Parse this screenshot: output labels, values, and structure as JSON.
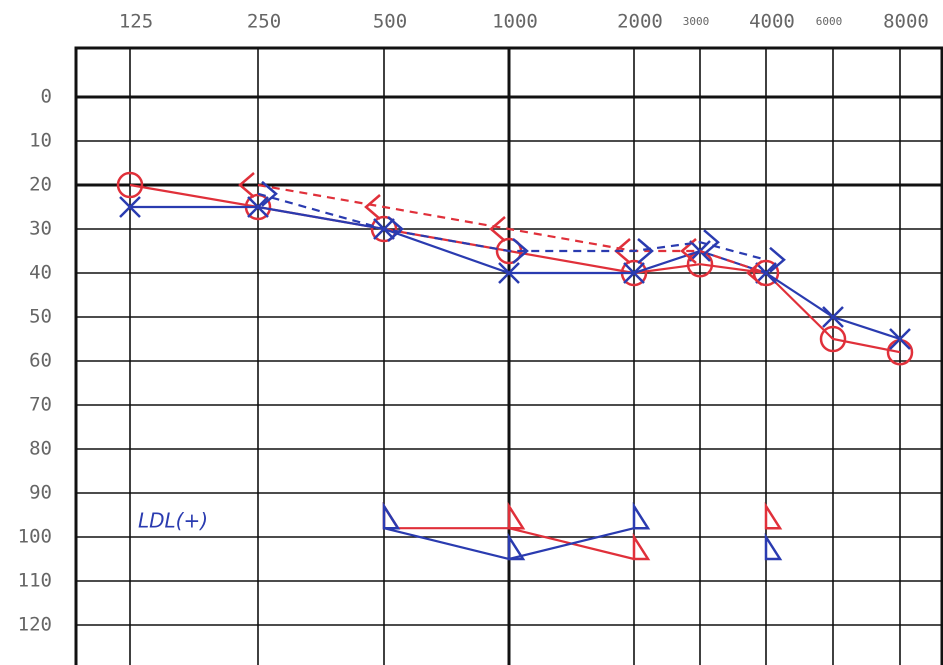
{
  "chart_data": {
    "type": "line",
    "categories": [
      "125",
      "250",
      "500",
      "1000",
      "2000",
      "3000",
      "4000",
      "6000",
      "8000"
    ],
    "ylim": [
      -10,
      130
    ],
    "yticks": [
      0,
      10,
      20,
      30,
      40,
      50,
      60,
      70,
      80,
      90,
      100,
      110,
      120
    ],
    "grid": true,
    "annotation": "LDL(+)",
    "series": [
      {
        "color": "#e0303a",
        "marker": "circle",
        "dash": false,
        "values": [
          20,
          25,
          30,
          35,
          40,
          38,
          40,
          55,
          58
        ]
      },
      {
        "color": "#2a3bb0",
        "marker": "x",
        "dash": false,
        "values": [
          25,
          25,
          30,
          40,
          40,
          35,
          40,
          50,
          55
        ]
      },
      {
        "color": "#e0303a",
        "marker": "left",
        "dash": true,
        "values": [
          null,
          20,
          25,
          30,
          35,
          35,
          40,
          null,
          null
        ]
      },
      {
        "color": "#2a3bb0",
        "marker": "right",
        "dash": true,
        "values": [
          null,
          22,
          30,
          35,
          35,
          33,
          37,
          null,
          null
        ]
      },
      {
        "color": "#e0303a",
        "marker": "triangle",
        "dash": false,
        "values": [
          null,
          null,
          98,
          98,
          105,
          null,
          98,
          null,
          null
        ]
      },
      {
        "color": "#2a3bb0",
        "marker": "triangle",
        "dash": false,
        "values": [
          null,
          null,
          98,
          105,
          98,
          null,
          105,
          null,
          null
        ]
      }
    ]
  }
}
